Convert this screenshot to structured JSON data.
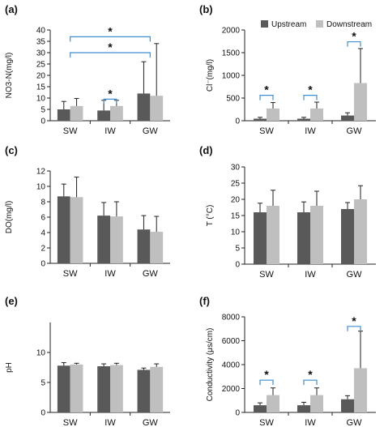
{
  "colors": {
    "upstream": "#595959",
    "downstream": "#bfbfbf",
    "bracket": "#3f8fd2",
    "axis": "#222222",
    "error": "#222222"
  },
  "legend": {
    "upstream": "Upstream",
    "downstream": "Downstream"
  },
  "chart_data": [
    {
      "panel": "(a)",
      "type": "bar",
      "ylabel": "NO3-N(mg/l)",
      "categories": [
        "SW",
        "IW",
        "GW"
      ],
      "ylim": [
        0,
        40
      ],
      "yticks": [
        0,
        5,
        10,
        15,
        20,
        25,
        30,
        35,
        40
      ],
      "series": [
        {
          "name": "Upstream",
          "values": [
            5,
            4.5,
            12
          ],
          "errors": [
            3.5,
            4.5,
            14
          ]
        },
        {
          "name": "Downstream",
          "values": [
            6.5,
            6.5,
            11
          ],
          "errors": [
            3.3,
            2.5,
            23
          ]
        }
      ],
      "brackets": [
        {
          "from": 1,
          "to": 1,
          "y": 9.5,
          "label": "*"
        },
        {
          "from": 0,
          "to": 2,
          "y": 30,
          "label": "*"
        },
        {
          "from": 0,
          "to": 2,
          "y": 37,
          "label": "*"
        }
      ]
    },
    {
      "panel": "(b)",
      "type": "bar",
      "ylabel": "Cl⁻(mg/l)",
      "categories": [
        "SW",
        "IW",
        "GW"
      ],
      "ylim": [
        0,
        2000
      ],
      "yticks": [
        0,
        500,
        1000,
        1500,
        2000
      ],
      "series": [
        {
          "name": "Upstream",
          "values": [
            45,
            45,
            115
          ],
          "errors": [
            30,
            30,
            60
          ]
        },
        {
          "name": "Downstream",
          "values": [
            270,
            270,
            830
          ],
          "errors": [
            130,
            140,
            760
          ]
        }
      ],
      "brackets": [
        {
          "from": 0,
          "to": 0,
          "y": 560,
          "label": "*"
        },
        {
          "from": 1,
          "to": 1,
          "y": 560,
          "label": "*"
        },
        {
          "from": 2,
          "to": 2,
          "y": 1740,
          "label": "*"
        }
      ]
    },
    {
      "panel": "(c)",
      "type": "bar",
      "ylabel": "DO(mg/l)",
      "categories": [
        "SW",
        "IW",
        "GW"
      ],
      "ylim": [
        0,
        12
      ],
      "yticks": [
        0,
        2,
        4,
        6,
        8,
        10,
        12
      ],
      "series": [
        {
          "name": "Upstream",
          "values": [
            8.7,
            6.2,
            4.4
          ],
          "errors": [
            1.6,
            1.7,
            1.8
          ]
        },
        {
          "name": "Downstream",
          "values": [
            8.6,
            6.1,
            4.1
          ],
          "errors": [
            2.6,
            1.9,
            2.0
          ]
        }
      ],
      "brackets": []
    },
    {
      "panel": "(d)",
      "type": "bar",
      "ylabel": "T (°C)",
      "categories": [
        "SW",
        "IW",
        "GW"
      ],
      "ylim": [
        0,
        30
      ],
      "yticks": [
        0,
        5,
        10,
        15,
        20,
        25,
        30
      ],
      "series": [
        {
          "name": "Upstream",
          "values": [
            16,
            16,
            17
          ],
          "errors": [
            2.8,
            3.2,
            2.0
          ]
        },
        {
          "name": "Downstream",
          "values": [
            18,
            18,
            20
          ],
          "errors": [
            4.8,
            4.5,
            4.2
          ]
        }
      ],
      "brackets": []
    },
    {
      "panel": "(e)",
      "type": "bar",
      "ylabel": "pH",
      "categories": [
        "SW",
        "IW",
        "GW"
      ],
      "ylim": [
        0,
        15
      ],
      "yticks": [
        0,
        5,
        10
      ],
      "series": [
        {
          "name": "Upstream",
          "values": [
            7.8,
            7.7,
            7.1
          ],
          "errors": [
            0.5,
            0.4,
            0.3
          ]
        },
        {
          "name": "Downstream",
          "values": [
            8.0,
            7.9,
            7.6
          ],
          "errors": [
            0.2,
            0.3,
            0.5
          ]
        }
      ],
      "brackets": []
    },
    {
      "panel": "(f)",
      "type": "bar",
      "ylabel": "Conductivity (μs/cm)",
      "categories": [
        "SW",
        "IW",
        "GW"
      ],
      "ylim": [
        0,
        8000
      ],
      "yticks": [
        0,
        2000,
        4000,
        6000,
        8000
      ],
      "series": [
        {
          "name": "Upstream",
          "values": [
            600,
            600,
            1100
          ],
          "errors": [
            200,
            250,
            300
          ]
        },
        {
          "name": "Downstream",
          "values": [
            1450,
            1450,
            3700
          ],
          "errors": [
            600,
            600,
            3100
          ]
        }
      ],
      "brackets": [
        {
          "from": 0,
          "to": 0,
          "y": 2700,
          "label": "*"
        },
        {
          "from": 1,
          "to": 1,
          "y": 2700,
          "label": "*"
        },
        {
          "from": 2,
          "to": 2,
          "y": 7200,
          "label": "*"
        }
      ]
    }
  ]
}
